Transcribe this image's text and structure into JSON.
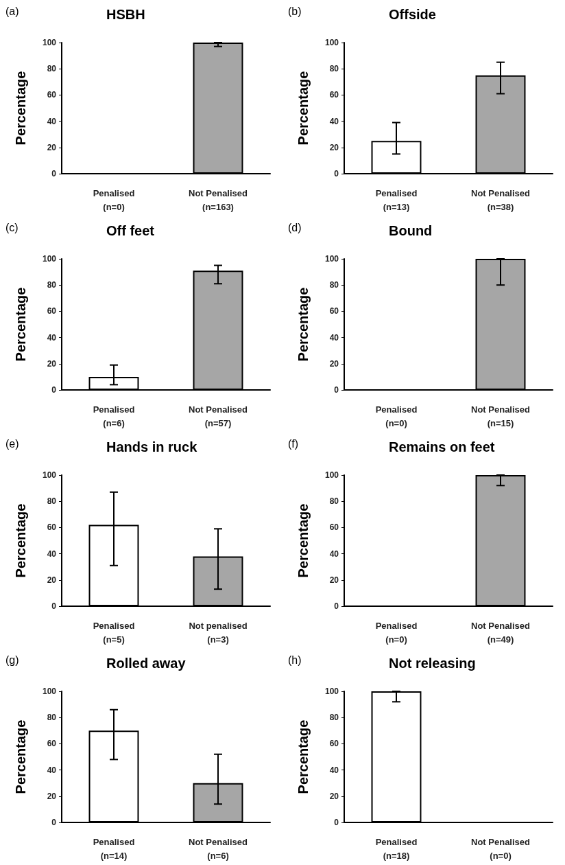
{
  "chart_data": [
    {
      "type": "bar",
      "title": "HSBH",
      "annotations": [
        "(a)"
      ],
      "ylabel": "Percentage",
      "categories": [
        "Penalised\n(n=0)",
        "Not Penalised\n(n=163)"
      ],
      "values": [
        0,
        100
      ],
      "errors": [
        null,
        [
          97,
          100
        ]
      ],
      "colors": [
        "#ffffff",
        "#a6a6a6"
      ],
      "ylim": [
        0,
        100
      ],
      "yticks": [
        0,
        20,
        40,
        60,
        80,
        100
      ],
      "grid": false
    },
    {
      "type": "bar",
      "title": "Offside",
      "annotations": [
        "(b)"
      ],
      "ylabel": "Percentage",
      "categories": [
        "Penalised\n(n=13)",
        "Not Penalised\n(n=38)"
      ],
      "values": [
        25,
        75
      ],
      "errors": [
        [
          15,
          39
        ],
        [
          61,
          85
        ]
      ],
      "colors": [
        "#ffffff",
        "#a6a6a6"
      ],
      "ylim": [
        0,
        100
      ],
      "yticks": [
        0,
        20,
        40,
        60,
        80,
        100
      ],
      "grid": false
    },
    {
      "type": "bar",
      "title": "Off feet",
      "annotations": [
        "(c)"
      ],
      "ylabel": "Percentage",
      "categories": [
        "Penalised\n(n=6)",
        "Not Penalised\n(n=57)"
      ],
      "values": [
        10,
        91
      ],
      "errors": [
        [
          4,
          19
        ],
        [
          81,
          95
        ]
      ],
      "colors": [
        "#ffffff",
        "#a6a6a6"
      ],
      "ylim": [
        0,
        100
      ],
      "yticks": [
        0,
        20,
        40,
        60,
        80,
        100
      ],
      "grid": false
    },
    {
      "type": "bar",
      "title": "Bound",
      "annotations": [
        "(d)"
      ],
      "ylabel": "Percentage",
      "categories": [
        "Penalised\n(n=0)",
        "Not Penalised\n(n=15)"
      ],
      "values": [
        0,
        100
      ],
      "errors": [
        null,
        [
          80,
          100
        ]
      ],
      "colors": [
        "#ffffff",
        "#a6a6a6"
      ],
      "ylim": [
        0,
        100
      ],
      "yticks": [
        0,
        20,
        40,
        60,
        80,
        100
      ],
      "grid": false
    },
    {
      "type": "bar",
      "title": "Hands in ruck",
      "annotations": [
        "(e)"
      ],
      "ylabel": "Percentage",
      "categories": [
        "Penalised\n(n=5)",
        "Not penalised\n(n=3)"
      ],
      "values": [
        62,
        38
      ],
      "errors": [
        [
          31,
          87
        ],
        [
          13,
          59
        ]
      ],
      "colors": [
        "#ffffff",
        "#a6a6a6"
      ],
      "ylim": [
        0,
        100
      ],
      "yticks": [
        0,
        20,
        40,
        60,
        80,
        100
      ],
      "grid": false
    },
    {
      "type": "bar",
      "title": "Remains on feet",
      "annotations": [
        "(f)"
      ],
      "ylabel": "Percentage",
      "categories": [
        "Penalised\n(n=0)",
        "Not Penalised\n(n=49)"
      ],
      "values": [
        0,
        100
      ],
      "errors": [
        null,
        [
          92,
          100
        ]
      ],
      "colors": [
        "#ffffff",
        "#a6a6a6"
      ],
      "ylim": [
        0,
        100
      ],
      "yticks": [
        0,
        20,
        40,
        60,
        80,
        100
      ],
      "grid": false
    },
    {
      "type": "bar",
      "title": "Rolled away",
      "annotations": [
        "(g)"
      ],
      "ylabel": "Percentage",
      "categories": [
        "Penalised\n(n=14)",
        "Not Penalised\n(n=6)"
      ],
      "values": [
        70,
        30
      ],
      "errors": [
        [
          48,
          86
        ],
        [
          14,
          52
        ]
      ],
      "colors": [
        "#ffffff",
        "#a6a6a6"
      ],
      "ylim": [
        0,
        100
      ],
      "yticks": [
        0,
        20,
        40,
        60,
        80,
        100
      ],
      "grid": false
    },
    {
      "type": "bar",
      "title": "Not releasing",
      "annotations": [
        "(h)"
      ],
      "ylabel": "Percentage",
      "categories": [
        "Penalised\n(n=18)",
        "Not Penalised\n(n=0)"
      ],
      "values": [
        100,
        0
      ],
      "errors": [
        [
          92,
          100
        ],
        null
      ],
      "colors": [
        "#ffffff",
        "#a6a6a6"
      ],
      "ylim": [
        0,
        100
      ],
      "yticks": [
        0,
        20,
        40,
        60,
        80,
        100
      ],
      "grid": false
    }
  ]
}
